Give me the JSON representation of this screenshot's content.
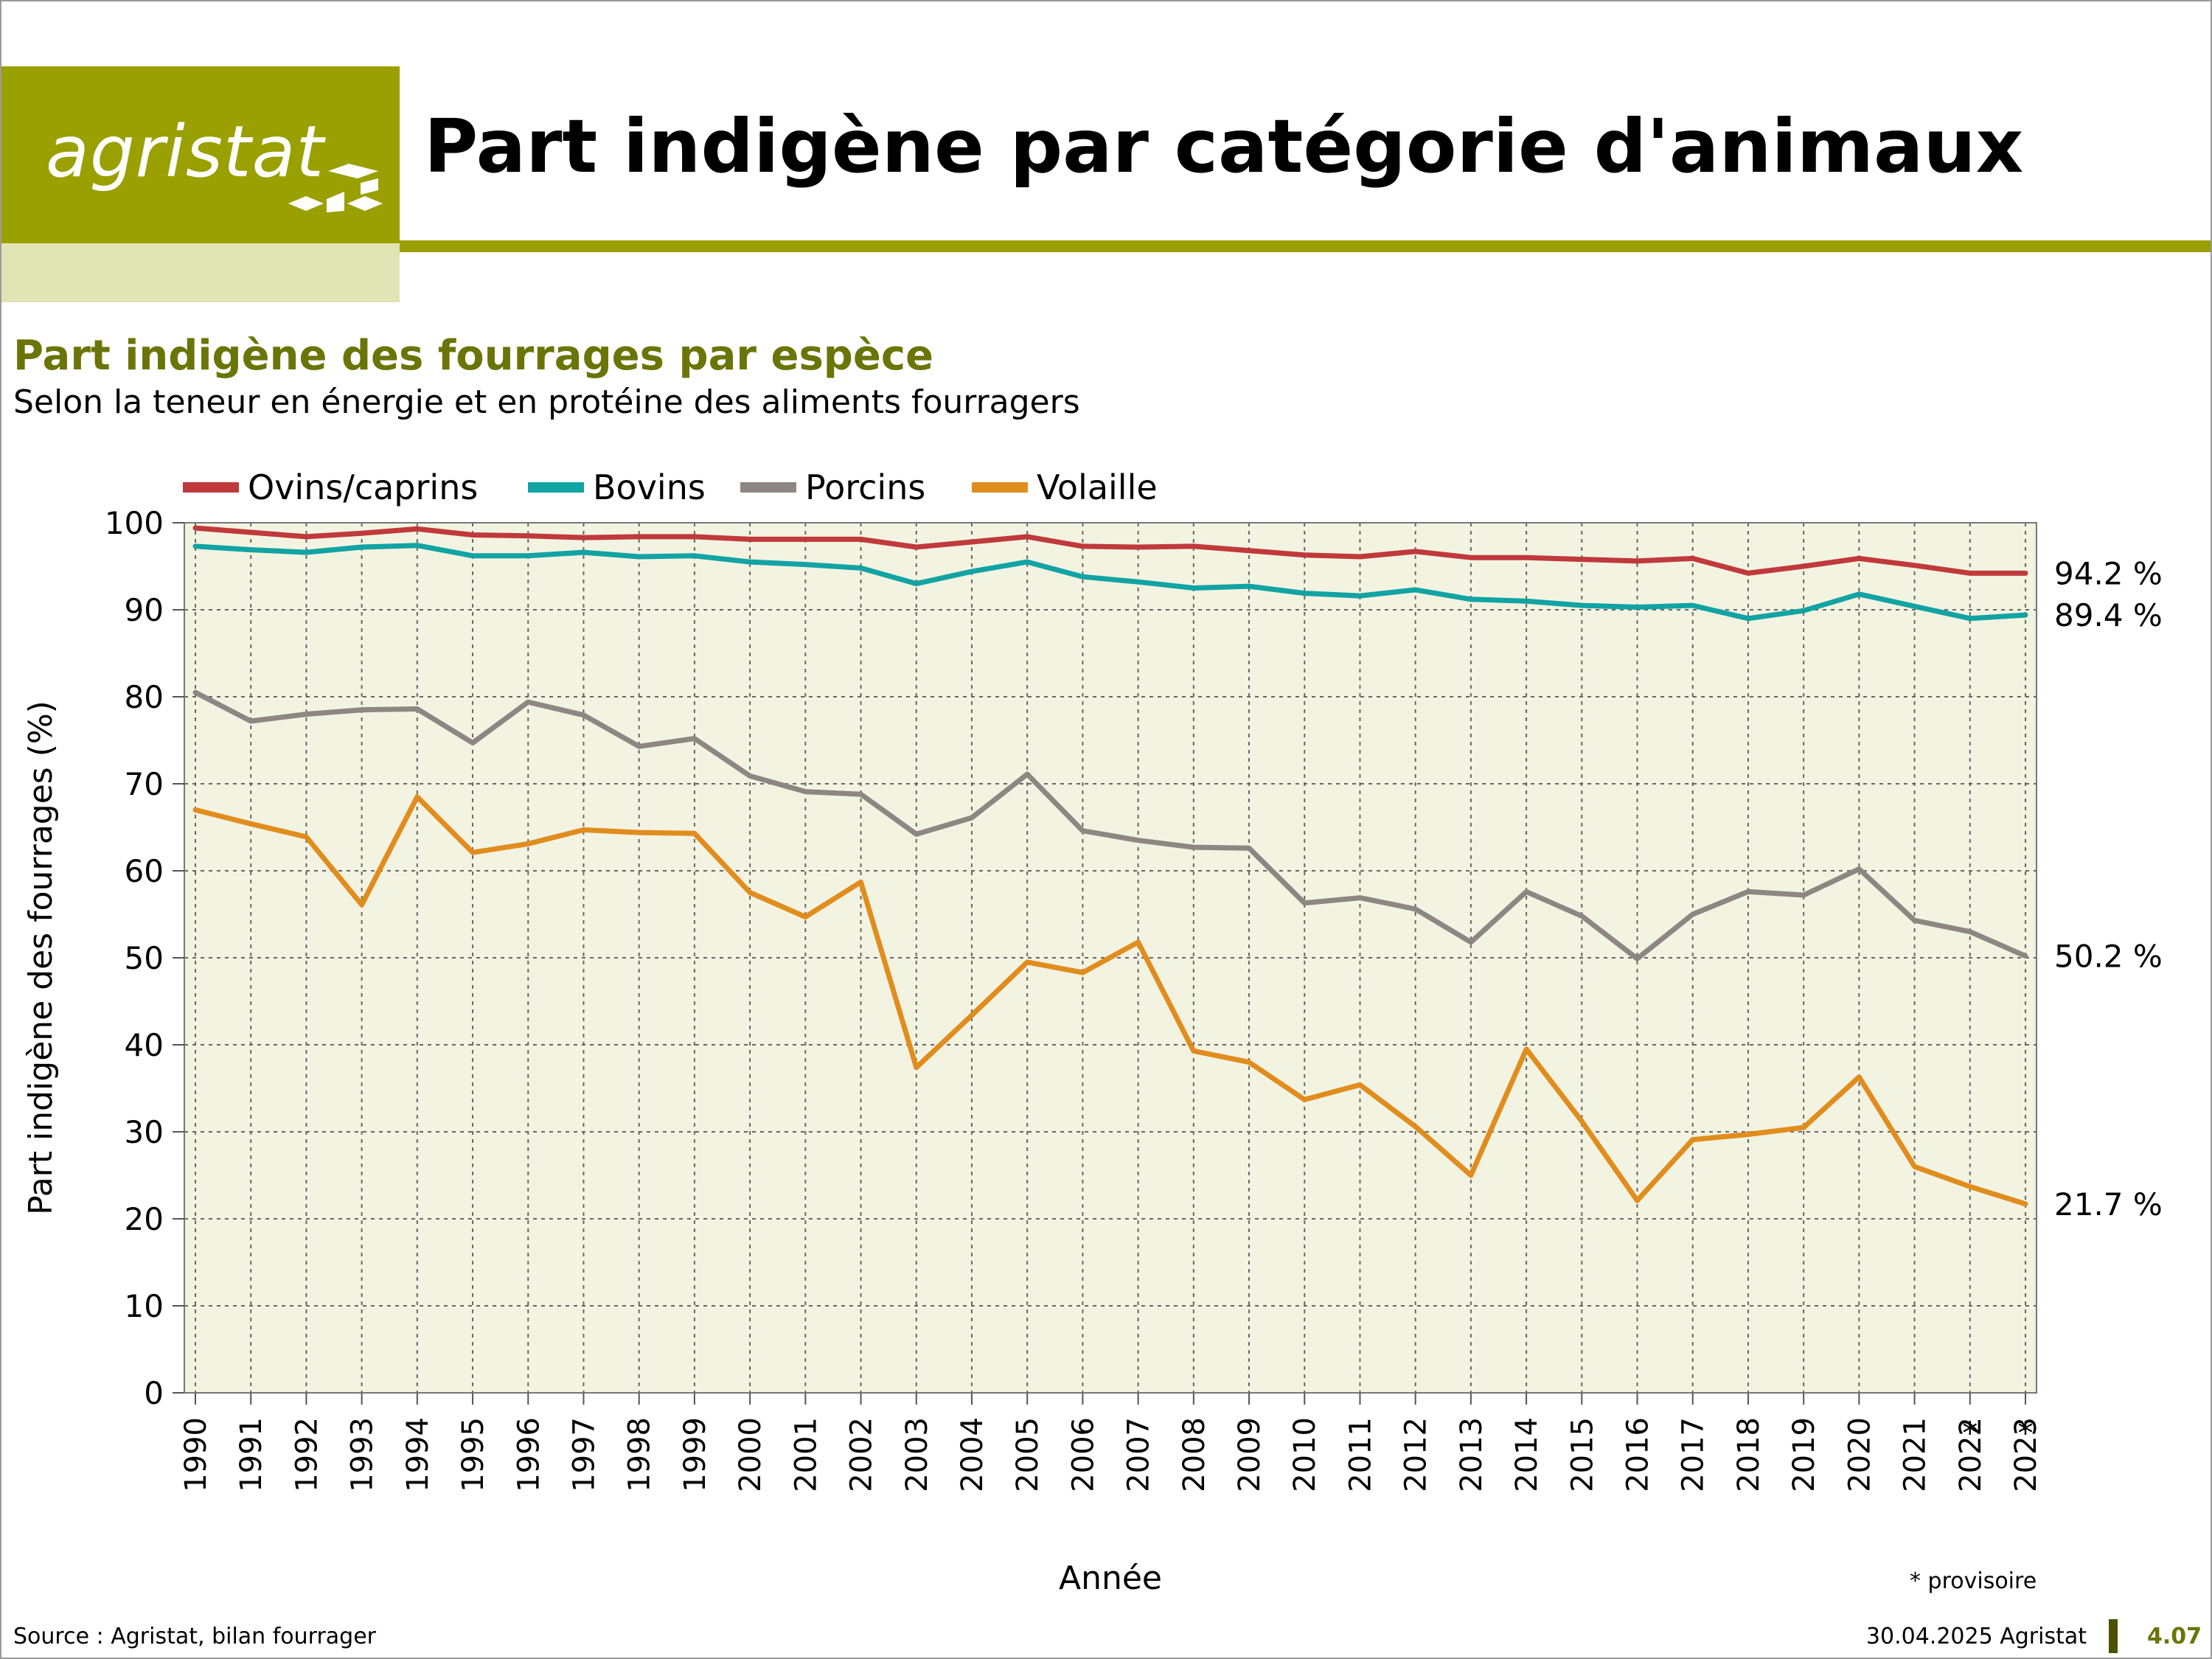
{
  "header": {
    "logo_text": "agristat",
    "title": "Part indigène par catégorie d'animaux",
    "brand_color": "#9aa000",
    "logo_icon": "agristat-diamond-mark-icon"
  },
  "chart_heading": {
    "title": "Part indigène des fourrages par espèce",
    "subtitle": "Selon la teneur en énergie et en protéine des aliments fourragers"
  },
  "footer": {
    "source": "Source : Agristat, bilan fourrager",
    "date": "30.04.2025 Agristat",
    "page": "4.07",
    "provisional_note": "* provisoire"
  },
  "chart_data": {
    "type": "line",
    "xlabel": "Année",
    "ylabel": "Part indigène des fourrages (%)",
    "ylim": [
      0,
      100
    ],
    "yticks": [
      0,
      10,
      20,
      30,
      40,
      50,
      60,
      70,
      80,
      90,
      100
    ],
    "grid": true,
    "legend_position": "top",
    "plot_background": "#f3f3e2",
    "x": [
      "1990",
      "1991",
      "1992",
      "1993",
      "1994",
      "1995",
      "1996",
      "1997",
      "1998",
      "1999",
      "2000",
      "2001",
      "2002",
      "2003",
      "2004",
      "2005",
      "2006",
      "2007",
      "2008",
      "2009",
      "2010",
      "2011",
      "2012",
      "2013",
      "2014",
      "2015",
      "2016",
      "2017",
      "2018",
      "2019",
      "2020",
      "2021",
      "2022",
      "2023"
    ],
    "provisional_years": [
      "2022",
      "2023"
    ],
    "provisional_marker": "*",
    "series": [
      {
        "name": "Ovins/caprins",
        "color": "#c0393b",
        "end_label": "94.2 %",
        "values": [
          99.4,
          98.9,
          98.4,
          98.8,
          99.3,
          98.6,
          98.5,
          98.3,
          98.4,
          98.4,
          98.1,
          98.1,
          98.1,
          97.2,
          97.8,
          98.4,
          97.3,
          97.2,
          97.3,
          96.8,
          96.3,
          96.1,
          96.7,
          96.0,
          96.0,
          95.8,
          95.6,
          95.9,
          94.2,
          95.0,
          95.9,
          95.1,
          94.2,
          94.2
        ]
      },
      {
        "name": "Bovins",
        "color": "#12a3a3",
        "end_label": "89.4 %",
        "values": [
          97.3,
          96.9,
          96.6,
          97.2,
          97.4,
          96.2,
          96.2,
          96.6,
          96.1,
          96.2,
          95.5,
          95.2,
          94.8,
          93.0,
          94.4,
          95.5,
          93.8,
          93.2,
          92.5,
          92.7,
          91.9,
          91.6,
          92.3,
          91.2,
          91.0,
          90.5,
          90.3,
          90.5,
          89.0,
          89.9,
          91.8,
          90.4,
          89.0,
          89.4
        ]
      },
      {
        "name": "Porcins",
        "color": "#8d8682",
        "end_label": "50.2 %",
        "values": [
          80.5,
          77.2,
          78.0,
          78.5,
          78.6,
          74.7,
          79.4,
          77.9,
          74.3,
          75.2,
          70.9,
          69.1,
          68.8,
          64.2,
          66.1,
          71.1,
          64.6,
          63.5,
          62.7,
          62.6,
          56.3,
          56.9,
          55.6,
          51.8,
          57.6,
          54.8,
          49.9,
          55.0,
          57.6,
          57.2,
          60.2,
          54.3,
          53.0,
          50.2
        ]
      },
      {
        "name": "Volaille",
        "color": "#e08d1e",
        "end_label": "21.7 %",
        "values": [
          67.0,
          65.4,
          63.9,
          56.1,
          68.5,
          62.1,
          63.1,
          64.7,
          64.4,
          64.3,
          57.5,
          54.7,
          58.7,
          37.4,
          43.4,
          49.5,
          48.3,
          51.8,
          39.3,
          38.0,
          33.7,
          35.4,
          30.6,
          25.0,
          39.5,
          31.2,
          22.1,
          29.1,
          29.7,
          30.5,
          36.3,
          26.0,
          23.7,
          21.7
        ]
      }
    ]
  }
}
